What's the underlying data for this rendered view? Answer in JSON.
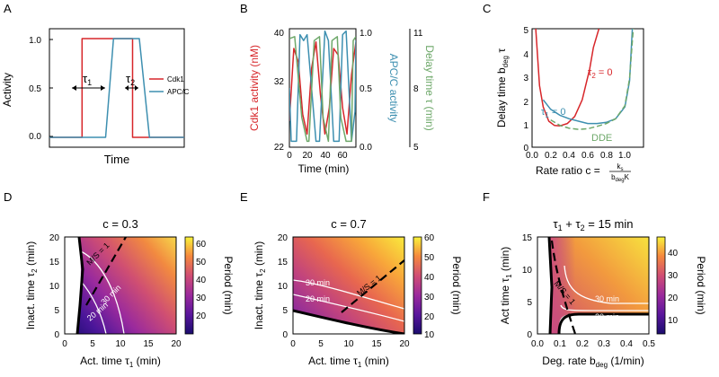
{
  "colors": {
    "cdk1": "#d7262a",
    "apc": "#3d8fb0",
    "delay": "#6ea86a",
    "white": "#ffffff",
    "black": "#000000"
  },
  "chart_data": [
    {
      "panel": "A",
      "type": "line",
      "xlabel": "Time",
      "ylabel": "Activity",
      "ylim": [
        -0.1,
        1.1
      ],
      "yticks": [
        "0.0",
        "0.5",
        "1.0"
      ],
      "legend": [
        "Cdk1",
        "APC/C"
      ],
      "legend_position": "right",
      "series": [
        {
          "name": "Cdk1",
          "color": "#d7262a",
          "x": [
            0,
            1.45,
            1.45,
            3.7,
            3.7,
            6
          ],
          "y": [
            0,
            0,
            1,
            1,
            0,
            0
          ]
        },
        {
          "name": "APC/C",
          "color": "#3d8fb0",
          "x": [
            0,
            2.5,
            2.85,
            4.0,
            4.45,
            6
          ],
          "y": [
            0,
            0,
            1,
            1,
            0,
            0
          ]
        }
      ],
      "annotations": [
        "τ1",
        "τ2"
      ]
    },
    {
      "panel": "B",
      "type": "line",
      "xlabel": "Time (min)",
      "xlim": [
        0,
        75
      ],
      "xticks": [
        "0",
        "20",
        "40",
        "60"
      ],
      "left_axis": {
        "label": "Cdk1 activity (nM)",
        "ticks": [
          "22",
          "32",
          "40"
        ],
        "range": [
          22,
          40
        ]
      },
      "right_axis_1": {
        "label": "APC/C activity",
        "ticks": [
          "0.0",
          "0.5",
          "1.0"
        ],
        "range": [
          0,
          1
        ]
      },
      "right_axis_2": {
        "label": "Delay time τ (min)",
        "ticks": [
          "5",
          "8",
          "11"
        ],
        "range": [
          5,
          11
        ]
      },
      "series": [
        {
          "name": "Cdk1",
          "color": "#d7262a",
          "x": [
            0,
            5,
            10,
            15,
            20,
            25,
            30,
            35,
            40,
            45,
            50,
            55,
            60,
            65,
            70,
            75
          ],
          "y": [
            26,
            37,
            35,
            27,
            24,
            34,
            38,
            30,
            24,
            28,
            37,
            36,
            28,
            24,
            33,
            38
          ]
        },
        {
          "name": "APC/C",
          "color": "#3d8fb0",
          "x": [
            0,
            2,
            8,
            12,
            16,
            20,
            30,
            34,
            40,
            44,
            50,
            56,
            60,
            64,
            70,
            74,
            75
          ],
          "y": [
            0.5,
            0.05,
            0.05,
            0.95,
            0.9,
            0.95,
            0.05,
            0.05,
            0.98,
            0.9,
            0.05,
            0.05,
            0.95,
            0.98,
            0.05,
            0.3,
            0.9
          ]
        },
        {
          "name": "Delay time",
          "color": "#6ea86a",
          "x": [
            0,
            6,
            14,
            20,
            22,
            28,
            34,
            38,
            44,
            48,
            54,
            58,
            64,
            70,
            72,
            75
          ],
          "y": [
            10.5,
            10.6,
            6.5,
            5.3,
            5.3,
            10.4,
            10.6,
            6.5,
            5.3,
            10.4,
            10.6,
            6.5,
            5.3,
            5.3,
            10.4,
            10.6
          ]
        }
      ]
    },
    {
      "panel": "C",
      "type": "line",
      "xlabel": "Rate ratio c = ks / (bdeg K)",
      "ylabel": "Delay time bdeg τ",
      "xlim": [
        0,
        1.2
      ],
      "ylim": [
        0,
        5
      ],
      "xticks": [
        "0.0",
        "0.2",
        "0.4",
        "0.6",
        "0.8",
        "1.0"
      ],
      "yticks": [
        "0",
        "1",
        "2",
        "3",
        "4",
        "5"
      ],
      "series": [
        {
          "name": "τ2 = 0",
          "color": "#d7262a",
          "x": [
            0.04,
            0.08,
            0.12,
            0.18,
            0.24,
            0.3,
            0.38,
            0.46,
            0.54,
            0.62,
            0.66,
            0.72
          ],
          "y": [
            5.0,
            2.6,
            1.7,
            1.1,
            0.92,
            0.9,
            1.0,
            1.3,
            2.0,
            3.3,
            4.2,
            5.0
          ]
        },
        {
          "name": "τ1 = 0",
          "color": "#3d8fb0",
          "x": [
            0.12,
            0.2,
            0.3,
            0.4,
            0.5,
            0.6,
            0.7,
            0.8,
            0.9,
            1.0,
            1.05,
            1.08
          ],
          "y": [
            2.0,
            1.6,
            1.35,
            1.2,
            1.1,
            1.0,
            1.0,
            1.05,
            1.2,
            1.7,
            2.8,
            5.0
          ]
        },
        {
          "name": "DDE",
          "color": "#6ea86a",
          "dashed": true,
          "x": [
            0.2,
            0.3,
            0.4,
            0.5,
            0.6,
            0.7,
            0.8,
            0.9,
            1.0,
            1.05,
            1.09
          ],
          "y": [
            1.15,
            0.92,
            0.8,
            0.75,
            0.78,
            0.88,
            1.0,
            1.2,
            1.75,
            2.9,
            5.0
          ]
        }
      ]
    },
    {
      "panel": "D",
      "type": "heatmap",
      "title": "c = 0.3",
      "xlabel": "Act. time τ1 (min)",
      "ylabel": "Inact. time τ2 (min)",
      "xlim": [
        0,
        20
      ],
      "ylim": [
        0,
        20
      ],
      "xticks": [
        "0",
        "5",
        "10",
        "15",
        "20"
      ],
      "yticks": [
        "0",
        "5",
        "10",
        "15",
        "20"
      ],
      "colorbar": {
        "label": "Period (min)",
        "range": [
          10,
          65
        ],
        "ticks": [
          "20",
          "30",
          "40",
          "50",
          "60"
        ]
      },
      "contours": [
        "20 min",
        "30 min"
      ],
      "line_label": "M/S = 1"
    },
    {
      "panel": "E",
      "type": "heatmap",
      "title": "c = 0.7",
      "xlabel": "Act. time τ1 (min)",
      "ylabel": "Inact. time τ2 (min)",
      "xlim": [
        0,
        20
      ],
      "ylim": [
        0,
        20
      ],
      "xticks": [
        "0",
        "5",
        "10",
        "15",
        "20"
      ],
      "yticks": [
        "0",
        "5",
        "10",
        "15",
        "20"
      ],
      "colorbar": {
        "label": "Period (min)",
        "range": [
          10,
          60
        ],
        "ticks": [
          "10",
          "20",
          "30",
          "40",
          "50",
          "60"
        ]
      },
      "contours": [
        "20 min",
        "30 min"
      ],
      "line_label": "M/S = 1"
    },
    {
      "panel": "F",
      "type": "heatmap",
      "title": "τ1 + τ2 = 15 min",
      "xlabel": "Deg. rate bdeg (1/min)",
      "ylabel": "Act time τ1 (min)",
      "xlim": [
        0,
        0.5
      ],
      "ylim": [
        0,
        15
      ],
      "xticks": [
        "0.0",
        "0.1",
        "0.2",
        "0.3",
        "0.4",
        "0.5"
      ],
      "yticks": [
        "0",
        "5",
        "10",
        "15"
      ],
      "colorbar": {
        "label": "Period (min)",
        "range": [
          5,
          48
        ],
        "ticks": [
          "10",
          "20",
          "30",
          "40"
        ]
      },
      "contours": [
        "20 min",
        "30 min"
      ],
      "line_label": "M/S = 1"
    }
  ],
  "panel_labels": [
    "A",
    "B",
    "C",
    "D",
    "E",
    "F"
  ],
  "text": {
    "a_xlabel": "Time",
    "a_ylabel": "Activity",
    "a_leg_cdk1": "Cdk1",
    "a_leg_apc": "APC/C",
    "b_xlabel": "Time (min)",
    "b_left_label": "Cdk1 activity (nM)",
    "b_right_label1": "APC/C activity",
    "b_right_label2": "Delay time τ (min)",
    "c_xlabel_main": "Rate ratio c =",
    "c_num": "k",
    "c_num_sub": "s",
    "c_den": "b",
    "c_den_sub": "deg",
    "c_den_K": "K",
    "c_ylabel_main": "Delay time b",
    "c_ylabel_sub": "deg",
    "c_ylabel_tau": " τ",
    "c_tau2": "τ",
    "c_tau2_sub": "2",
    "c_tau2_eq": " = 0",
    "c_tau1": "τ",
    "c_tau1_sub": "1",
    "c_tau1_eq": " = 0",
    "c_dde": "DDE",
    "d_title": "c = 0.3",
    "e_title": "c = 0.7",
    "f_title": "τ",
    "f_title_sub1": "1",
    "f_title_mid": " + τ",
    "f_title_sub2": "2",
    "f_title_end": " = 15 min",
    "de_xlabel": "Act. time τ",
    "de_xlabel_sub": "1",
    "de_xlabel_end": " (min)",
    "de_ylabel": "Inact. time τ",
    "de_ylabel_sub": "2",
    "de_ylabel_end": " (min)",
    "f_xlabel": "Deg. rate b",
    "f_xlabel_sub": "deg",
    "f_xlabel_end": " (1/min)",
    "f_ylabel": "Act time τ",
    "f_ylabel_sub": "1",
    "f_ylabel_end": " (min)",
    "period": "Period (min)",
    "ms": "M/S = 1",
    "min20": "20 min",
    "min30": "30 min",
    "tau1": "τ",
    "tau1_sub": "1",
    "tau2": "τ",
    "tau2_sub": "2"
  }
}
